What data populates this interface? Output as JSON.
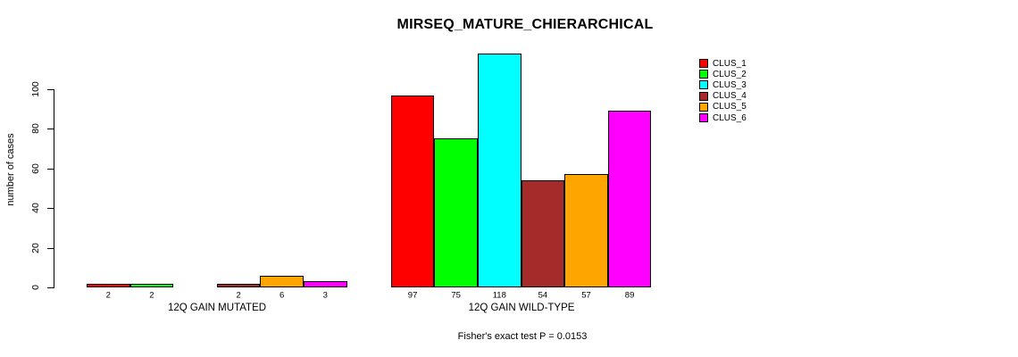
{
  "chart_data": {
    "type": "bar",
    "title": "MIRSEQ_MATURE_CHIERARCHICAL",
    "ylabel": "number of cases",
    "xlabel": "",
    "yticks": [
      0,
      20,
      40,
      60,
      80,
      100
    ],
    "ylim": [
      0,
      118
    ],
    "grid": false,
    "legend_position": "top-right",
    "series": [
      {
        "name": "CLUS_1",
        "color": "#FF0000"
      },
      {
        "name": "CLUS_2",
        "color": "#00FF00"
      },
      {
        "name": "CLUS_3",
        "color": "#00FFFF"
      },
      {
        "name": "CLUS_4",
        "color": "#A52A2A"
      },
      {
        "name": "CLUS_5",
        "color": "#FFA500"
      },
      {
        "name": "CLUS_6",
        "color": "#FF00FF"
      }
    ],
    "groups": [
      {
        "label": "12Q GAIN MUTATED",
        "values": [
          2,
          2,
          0,
          2,
          6,
          3
        ],
        "bar_labels": [
          "2",
          "2",
          "",
          "2",
          "6",
          "3"
        ]
      },
      {
        "label": "12Q GAIN WILD-TYPE",
        "values": [
          97,
          75,
          118,
          54,
          57,
          89
        ],
        "bar_labels": [
          "97",
          "75",
          "118",
          "54",
          "57",
          "89"
        ]
      }
    ],
    "footnote": "Fisher's exact test P = 0.0153"
  },
  "colors": {
    "background": "#FFFFFF",
    "axis": "#000000",
    "text": "#000000"
  }
}
